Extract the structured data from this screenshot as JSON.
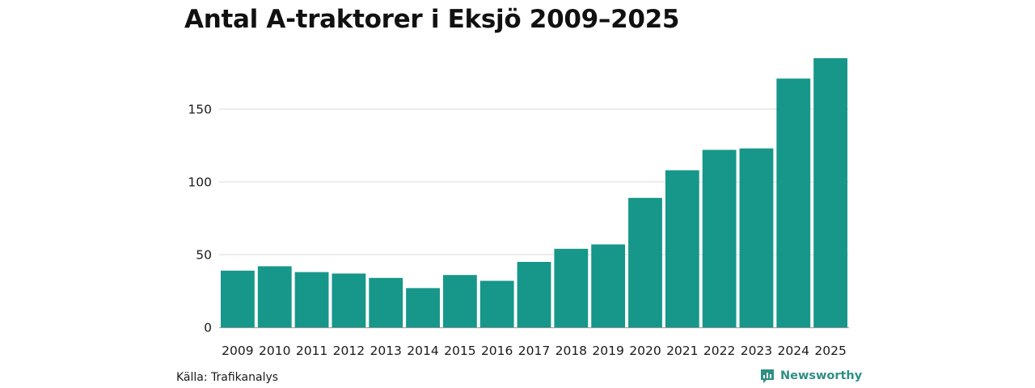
{
  "colors": {
    "bar": "#16978a",
    "grid": "#d9d9d9",
    "axis": "#9a9a9a",
    "brand": "#2f8f83"
  },
  "source": "Källa: Trafikanalys",
  "brand": {
    "name": "Newsworthy",
    "icon": "newsworthy-logo-icon"
  },
  "chart_data": {
    "type": "bar",
    "title": "Antal A-traktorer i Eksjö 2009–2025",
    "xlabel": "",
    "ylabel": "",
    "categories": [
      "2009",
      "2010",
      "2011",
      "2012",
      "2013",
      "2014",
      "2015",
      "2016",
      "2017",
      "2018",
      "2019",
      "2020",
      "2021",
      "2022",
      "2023",
      "2024",
      "2025"
    ],
    "values": [
      39,
      42,
      38,
      37,
      34,
      27,
      36,
      32,
      45,
      54,
      57,
      89,
      108,
      122,
      123,
      171,
      185
    ],
    "ylim": [
      0,
      185
    ],
    "yticks": [
      0,
      50,
      100,
      150
    ],
    "grid": true,
    "legend": "none"
  }
}
